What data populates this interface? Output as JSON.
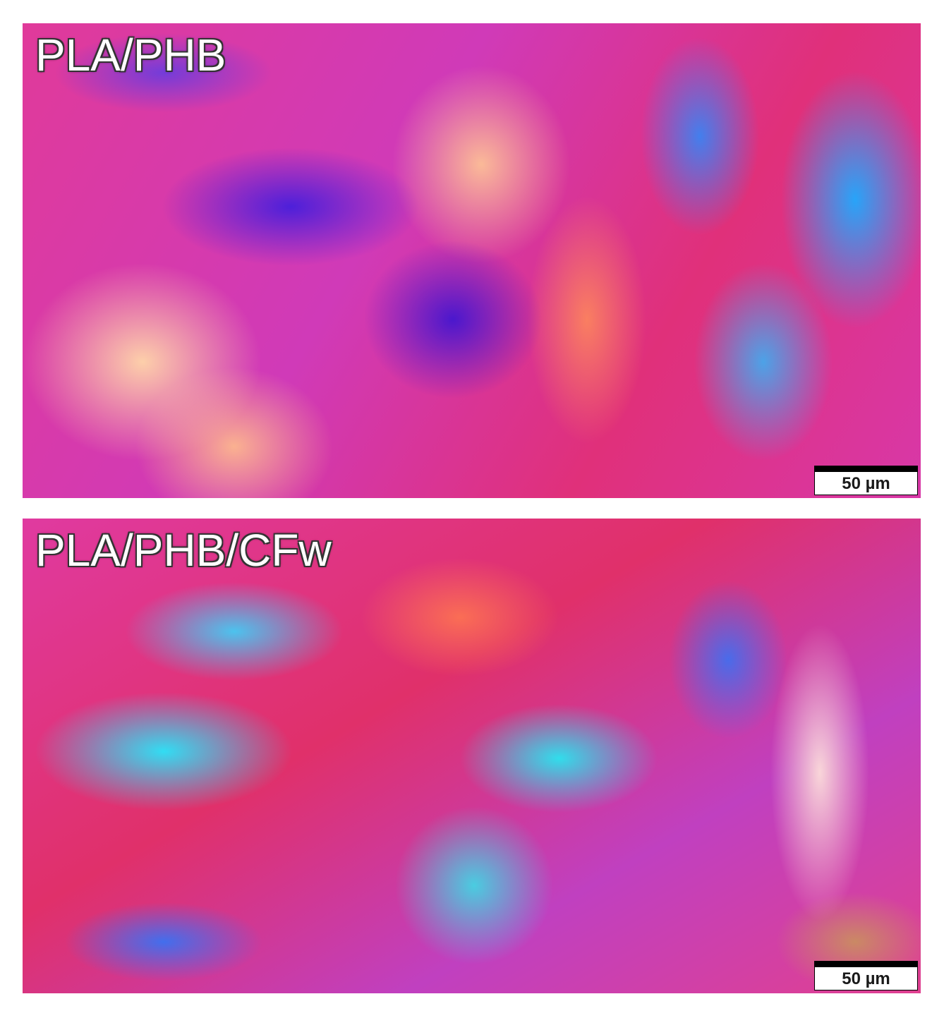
{
  "panels": [
    {
      "label": "PLA/PHB",
      "scale_bar": "50 µm"
    },
    {
      "label": "PLA/PHB/CFw",
      "scale_bar": "50 µm"
    }
  ]
}
